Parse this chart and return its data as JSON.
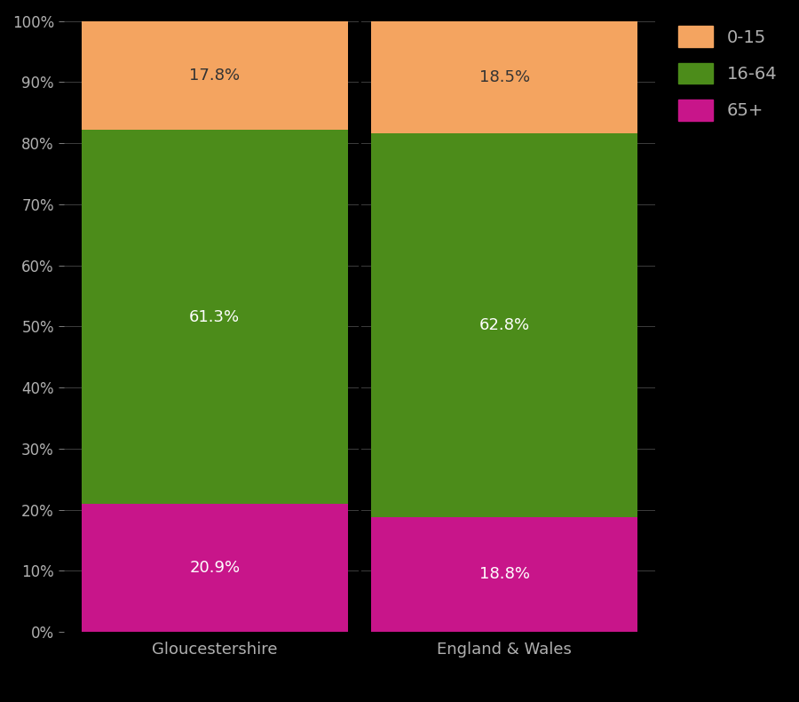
{
  "categories": [
    "Gloucestershire",
    "England & Wales"
  ],
  "segments": {
    "65+": [
      20.9,
      18.8
    ],
    "16-64": [
      61.3,
      62.8
    ],
    "0-15": [
      17.8,
      18.5
    ]
  },
  "colors": {
    "0-15": "#F4A460",
    "16-64": "#4C8C1A",
    "65+": "#C8158A"
  },
  "label_colors": {
    "0-15": "#333333",
    "16-64": "white",
    "65+": "white"
  },
  "background_color": "#000000",
  "text_color": "#B0B0B0",
  "bar_width": 0.92,
  "ylim": [
    0,
    100
  ],
  "yticks": [
    0,
    10,
    20,
    30,
    40,
    50,
    60,
    70,
    80,
    90,
    100
  ],
  "ytick_labels": [
    "0%",
    "10%",
    "20%",
    "30%",
    "40%",
    "50%",
    "60%",
    "70%",
    "80%",
    "90%",
    "100%"
  ],
  "legend_labels": [
    "0-15",
    "16-64",
    "65+"
  ]
}
